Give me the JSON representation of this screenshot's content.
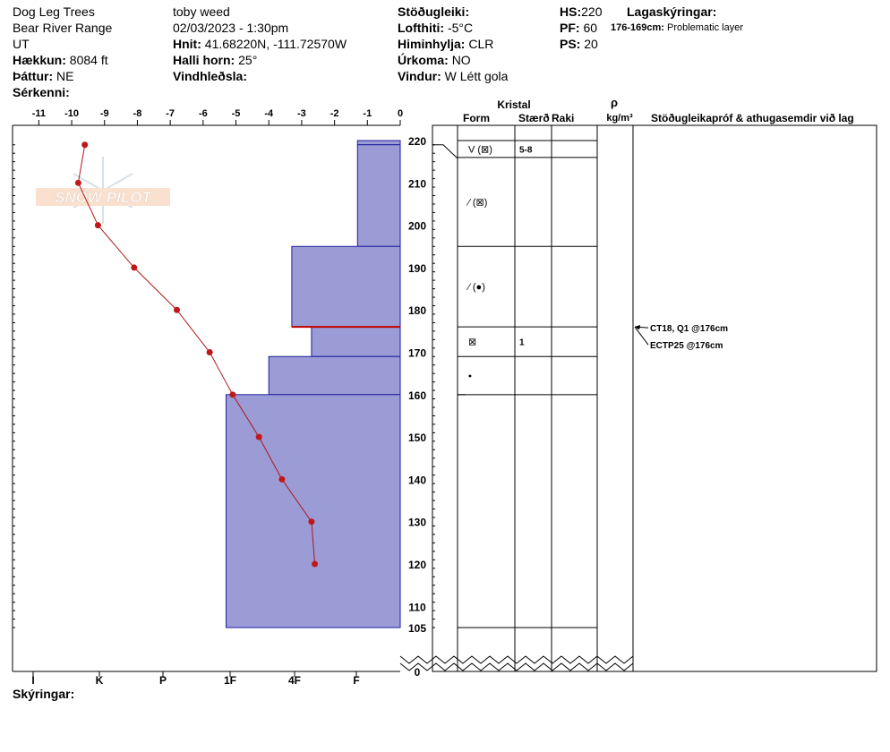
{
  "header": {
    "site_name": "Dog Leg Trees",
    "range": "Bear River Range",
    "state": "UT",
    "elevation_label": "Hækkun:",
    "elevation_value": "8084 ft",
    "aspect_label": "Þáttur:",
    "aspect_value": "NE",
    "features_label": "Sérkenni:",
    "observer": "toby weed",
    "datetime": "02/03/2023 - 1:30pm",
    "coords_label": "Hnit:",
    "coords_value": "41.68220N, -111.72570W",
    "slope_label": "Halli horn:",
    "slope_value": "25°",
    "wind_loading_label": "Vindhleðsla:",
    "stability_label": "Stöðugleiki:",
    "air_temp_label": "Lofthiti:",
    "air_temp_value": "-5°C",
    "sky_label": "Himinhylja:",
    "sky_value": "CLR",
    "precip_label": "Úrkoma:",
    "precip_value": "NO",
    "wind_label": "Vindur:",
    "wind_value": "W Létt gola",
    "hs_label": "HS:",
    "hs_value": "220",
    "pf_label": "PF:",
    "pf_value": "60",
    "ps_label": "PS:",
    "ps_value": "20",
    "layers_label": "Lagaskýringar:",
    "layer_note_range": "176-169cm:",
    "layer_note_text": "Problematic layer"
  },
  "footer": {
    "legend_label": "Skýringar:"
  },
  "watermark": "SNOW PILOT",
  "columns": {
    "crystal": "Kristal",
    "form": "Form",
    "size": "Stærð",
    "moisture": "Raki",
    "rho": "ρ",
    "density_unit": "kg/m³",
    "stability": "Stöðugleikapróf & athugasemdir við lag"
  },
  "chart_data": {
    "type": "line",
    "title": "",
    "temperature_axis": {
      "ticks": [
        "-11",
        "-10",
        "-9",
        "-8",
        "-7",
        "-6",
        "-5",
        "-4",
        "-3",
        "-2",
        "-1",
        "0"
      ],
      "range": [
        -11.8,
        0
      ]
    },
    "hardness_axis": {
      "ticks": [
        "I",
        "K",
        "P",
        "1F",
        "4F",
        "F"
      ]
    },
    "height_axis": {
      "ticks": [
        "220",
        "210",
        "200",
        "190",
        "180",
        "170",
        "160",
        "150",
        "140",
        "130",
        "120",
        "110",
        "105",
        "0"
      ],
      "range": [
        0,
        220
      ]
    },
    "temperature_profile": [
      {
        "height": 219,
        "temp": -9.6
      },
      {
        "height": 210,
        "temp": -9.8
      },
      {
        "height": 200,
        "temp": -9.2
      },
      {
        "height": 190,
        "temp": -8.1
      },
      {
        "height": 180,
        "temp": -6.8
      },
      {
        "height": 170,
        "temp": -5.8
      },
      {
        "height": 160,
        "temp": -5.1
      },
      {
        "height": 150,
        "temp": -4.3
      },
      {
        "height": 140,
        "temp": -3.6
      },
      {
        "height": 130,
        "temp": -2.7
      },
      {
        "height": 120,
        "temp": -2.6
      }
    ],
    "hardness_layers": [
      {
        "top": 220,
        "bottom": 219,
        "hardness_temp_equiv": -1.3
      },
      {
        "top": 219,
        "bottom": 195,
        "hardness_temp_equiv": -1.3
      },
      {
        "top": 195,
        "bottom": 176,
        "hardness_temp_equiv": -3.3
      },
      {
        "top": 176,
        "bottom": 169,
        "hardness_temp_equiv": -2.7
      },
      {
        "top": 169,
        "bottom": 160,
        "hardness_temp_equiv": -4.0
      },
      {
        "top": 160,
        "bottom": 105,
        "hardness_temp_equiv": -5.3
      }
    ],
    "problem_layer_height": 176,
    "layers": [
      {
        "top": 220,
        "bottom": 216,
        "form": "V (⊠)",
        "size": "5-8"
      },
      {
        "top": 216,
        "bottom": 195,
        "form": "⁄ (⊠)",
        "size": ""
      },
      {
        "top": 195,
        "bottom": 176,
        "form": "⁄ (●)",
        "size": ""
      },
      {
        "top": 176,
        "bottom": 169,
        "form": "⊠",
        "size": "1"
      },
      {
        "top": 169,
        "bottom": 160,
        "form": "•",
        "size": ""
      },
      {
        "top": 160,
        "bottom": 105,
        "form": "",
        "size": ""
      }
    ],
    "stability_tests": [
      "CT18, Q1 @176cm",
      "ECTP25 @176cm"
    ]
  }
}
